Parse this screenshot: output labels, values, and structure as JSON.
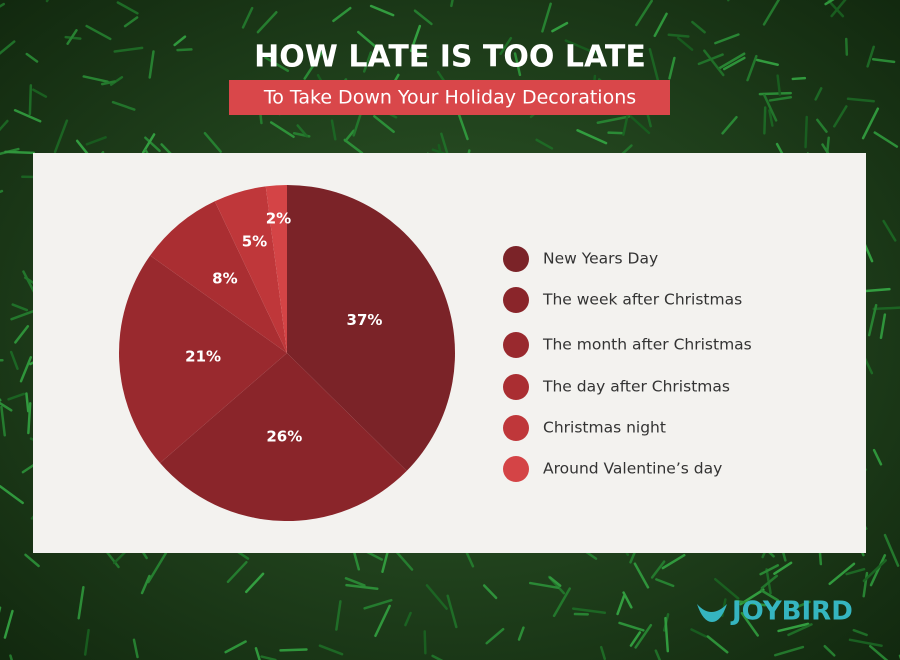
{
  "chart_data": {
    "type": "pie",
    "title": "HOW LATE IS TOO LATE",
    "subtitle": "To Take Down Your Holiday Decorations",
    "categories": [
      "New Years Day",
      "The week after Christmas",
      "The month after Christmas",
      "The day after Christmas",
      "Christmas night",
      "Around Valentine’s day"
    ],
    "values": [
      37,
      26,
      21,
      8,
      5,
      2
    ],
    "value_labels": [
      "37%",
      "26%",
      "21%",
      "8%",
      "5%",
      "2%"
    ],
    "colors": [
      "#7b2328",
      "#8a252a",
      "#99292e",
      "#aa2e32",
      "#bf373a",
      "#d44446"
    ]
  },
  "brand": "JOYBIRD"
}
